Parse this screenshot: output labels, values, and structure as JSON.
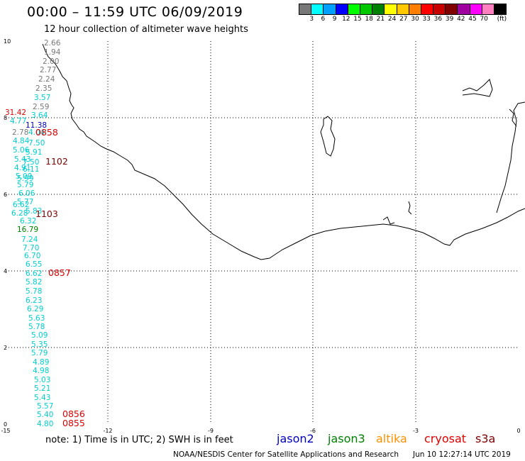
{
  "header": {
    "title": "00:00 – 11:59 UTC 06/09/2019",
    "subtitle": "12 hour collection of altimeter wave heights"
  },
  "colorbar": {
    "unit": "(ft)",
    "labels": [
      "3",
      "6",
      "9",
      "12",
      "15",
      "18",
      "21",
      "24",
      "27",
      "30",
      "33",
      "36",
      "39",
      "42",
      "45",
      "70"
    ],
    "colors": [
      "#787878",
      "#00ffff",
      "#00a0ff",
      "#0000ff",
      "#00ff00",
      "#00c800",
      "#008000",
      "#ffff00",
      "#ffc800",
      "#ff8000",
      "#ff0000",
      "#c80000",
      "#800000",
      "#a000a0",
      "#ff00ff",
      "#ff80c0",
      "#000000"
    ]
  },
  "axes": {
    "x_ticks": [
      "-15",
      "-12",
      "-9",
      "-6",
      "-3",
      "0"
    ],
    "y_ticks": [
      "0",
      "2",
      "4",
      "6",
      "8",
      "10"
    ]
  },
  "wave_labels": [
    {
      "t": "2.66",
      "c": "#787878"
    },
    {
      "t": "1.94",
      "c": "#787878"
    },
    {
      "t": "2.00",
      "c": "#787878"
    },
    {
      "t": "2.77",
      "c": "#787878"
    },
    {
      "t": "2.24",
      "c": "#787878"
    },
    {
      "t": "2.35",
      "c": "#787878"
    },
    {
      "t": "3.57",
      "c": "#00d0d0"
    },
    {
      "t": "2.59",
      "c": "#787878"
    },
    {
      "t": "3.64",
      "c": "#00d0d0"
    },
    {
      "t": "11.38",
      "c": "#0000c0"
    },
    {
      "t": "2.78",
      "c": "#787878"
    },
    {
      "t": "4.04",
      "c": "#00d0d0"
    },
    {
      "t": "7.50",
      "c": "#00d0d0"
    },
    {
      "t": "4.84",
      "c": "#00d0d0"
    },
    {
      "t": "5.91",
      "c": "#00d0d0"
    },
    {
      "t": "5.06",
      "c": "#00d0d0"
    },
    {
      "t": "5.43",
      "c": "#00d0d0"
    },
    {
      "t": "7.50",
      "c": "#00d0d0"
    },
    {
      "t": "4.91",
      "c": "#00d0d0"
    },
    {
      "t": "6.11",
      "c": "#00d0d0"
    },
    {
      "t": "5.09",
      "c": "#00d0d0"
    },
    {
      "t": "5.99",
      "c": "#00d0d0"
    },
    {
      "t": "5.79",
      "c": "#00d0d0"
    },
    {
      "t": "6.06",
      "c": "#00d0d0"
    },
    {
      "t": "5.77",
      "c": "#00d0d0"
    },
    {
      "t": "6.62",
      "c": "#00d0d0"
    },
    {
      "t": "6.28",
      "c": "#00d0d0"
    },
    {
      "t": "5.83",
      "c": "#00d0d0"
    },
    {
      "t": "6.32",
      "c": "#00d0d0"
    },
    {
      "t": "16.79",
      "c": "#008000"
    },
    {
      "t": "7.24",
      "c": "#00d0d0"
    },
    {
      "t": "7.70",
      "c": "#00d0d0"
    },
    {
      "t": "6.70",
      "c": "#00d0d0"
    },
    {
      "t": "6.55",
      "c": "#00d0d0"
    },
    {
      "t": "6.62",
      "c": "#00d0d0"
    },
    {
      "t": "5.82",
      "c": "#00d0d0"
    },
    {
      "t": "5.78",
      "c": "#00d0d0"
    },
    {
      "t": "6.23",
      "c": "#00d0d0"
    },
    {
      "t": "6.29",
      "c": "#00d0d0"
    },
    {
      "t": "5.63",
      "c": "#00d0d0"
    },
    {
      "t": "5.78",
      "c": "#00d0d0"
    },
    {
      "t": "5.09",
      "c": "#00d0d0"
    },
    {
      "t": "5.35",
      "c": "#00d0d0"
    },
    {
      "t": "5.79",
      "c": "#00d0d0"
    },
    {
      "t": "4.89",
      "c": "#00d0d0"
    },
    {
      "t": "4.98",
      "c": "#00d0d0"
    },
    {
      "t": "5.03",
      "c": "#00d0d0"
    },
    {
      "t": "5.21",
      "c": "#00d0d0"
    },
    {
      "t": "5.43",
      "c": "#00d0d0"
    },
    {
      "t": "5.57",
      "c": "#00d0d0"
    },
    {
      "t": "5.40",
      "c": "#00d0d0"
    },
    {
      "t": "4.80",
      "c": "#00d0d0"
    },
    {
      "t": "31.42",
      "c": "#e00000"
    },
    {
      "t": "4.77",
      "c": "#00d0d0"
    }
  ],
  "pass_times": [
    {
      "t": "0858",
      "c": "#e00000"
    },
    {
      "t": "1102",
      "c": "#800000"
    },
    {
      "t": "1103",
      "c": "#800000"
    },
    {
      "t": "0857",
      "c": "#e00000"
    },
    {
      "t": "0856",
      "c": "#e00000"
    },
    {
      "t": "0855",
      "c": "#e00000"
    }
  ],
  "note": "note: 1) Time is in UTC; 2) SWH is in feet",
  "legend": [
    {
      "name": "jason2",
      "color": "#0000c0"
    },
    {
      "name": "jason3",
      "color": "#008000"
    },
    {
      "name": "altika",
      "color": "#ff9000"
    },
    {
      "name": "cryosat",
      "color": "#e00000"
    },
    {
      "name": "s3a",
      "color": "#800000"
    }
  ],
  "footer": {
    "credit": "NOAA/NESDIS Center for Satellite Applications and Research",
    "timestamp": "Jun 10 12:27:14 UTC 2019"
  }
}
